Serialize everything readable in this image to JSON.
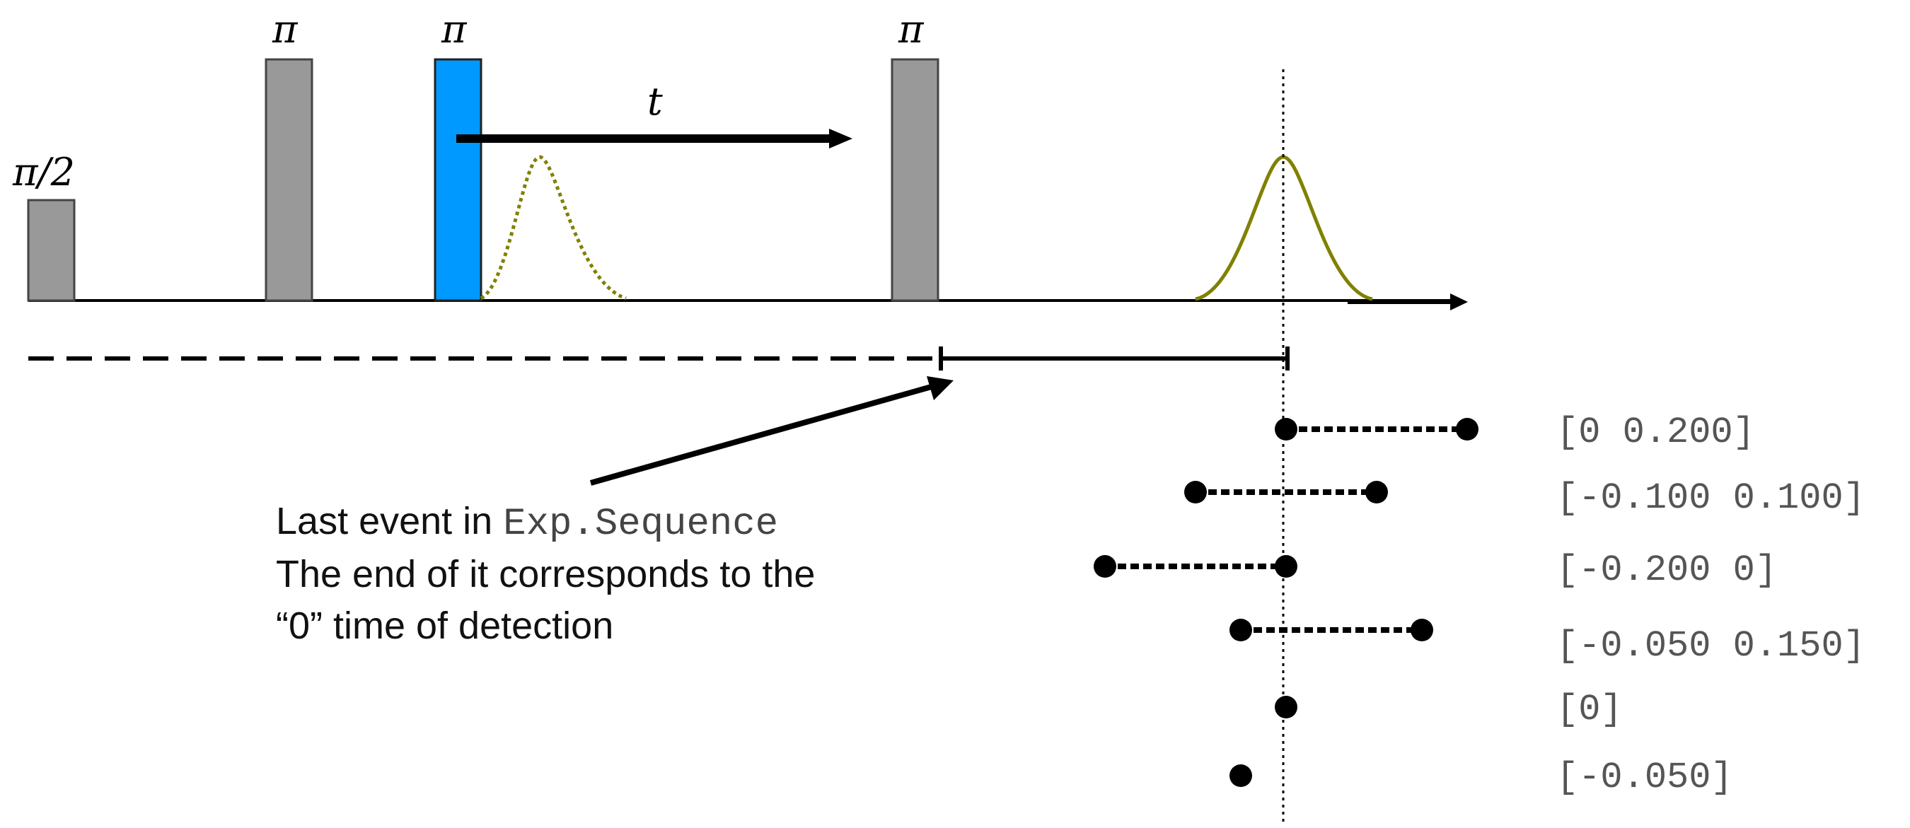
{
  "pulses": [
    {
      "label": "π/2",
      "kind": "grey"
    },
    {
      "label": "π",
      "kind": "grey"
    },
    {
      "label": "π",
      "kind": "highlight"
    },
    {
      "label": "π",
      "kind": "grey"
    }
  ],
  "delay_label": "t",
  "annotation": {
    "line1_prefix": "Last event in ",
    "line1_code": "Exp.Sequence",
    "line2": "The end of it corresponds to the",
    "line3": "“0” time of detection"
  },
  "detection_windows": [
    {
      "label": "[0 0.200]",
      "start": 0,
      "end": 0.2
    },
    {
      "label": "[-0.100 0.100]",
      "start": -0.1,
      "end": 0.1
    },
    {
      "label": "[-0.200 0]",
      "start": -0.2,
      "end": 0
    },
    {
      "label": "[-0.050 0.150]",
      "start": -0.05,
      "end": 0.15
    },
    {
      "label": "[0]",
      "start": 0,
      "end": 0
    },
    {
      "label": "[-0.050]",
      "start": -0.05,
      "end": -0.05
    }
  ],
  "colors": {
    "pulse_grey": "#999999",
    "pulse_highlight": "#0099ff",
    "echo": "#808000",
    "line": "#000000"
  }
}
